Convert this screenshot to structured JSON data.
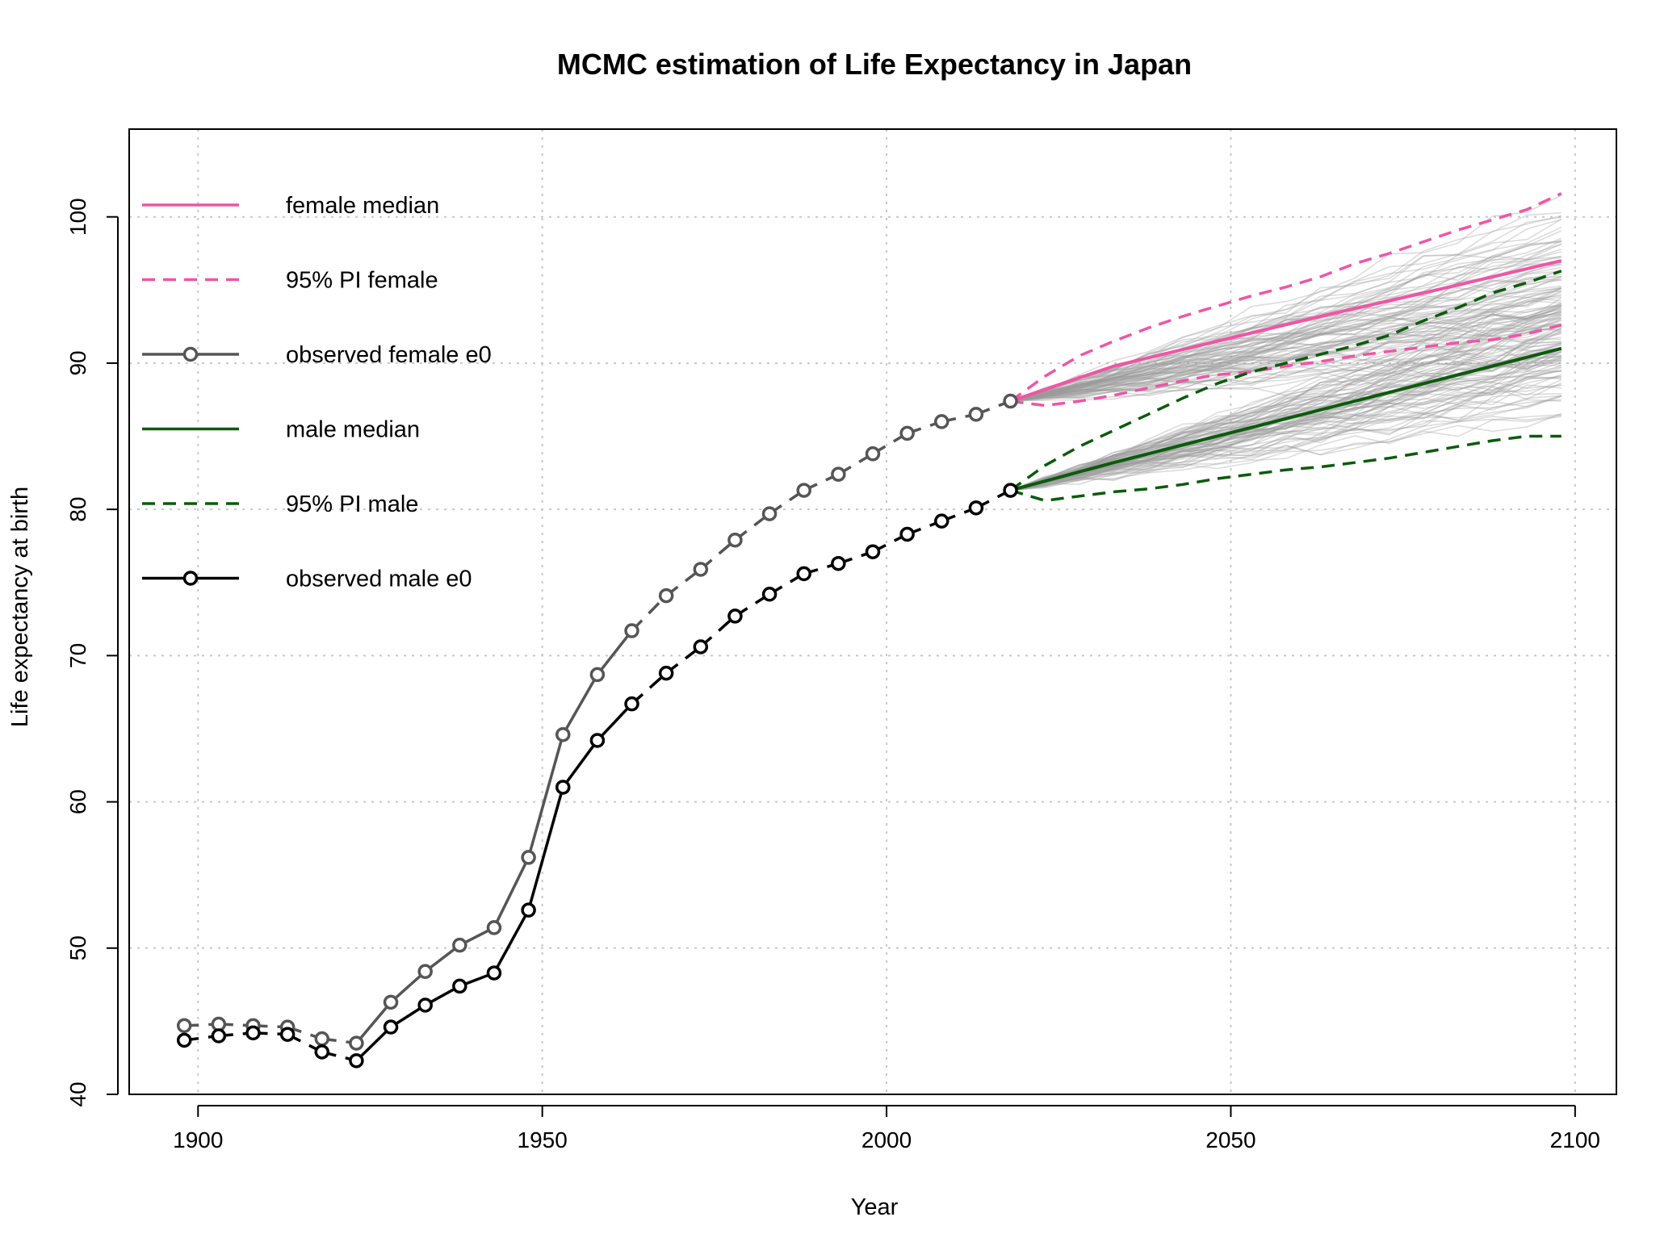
{
  "chart_data": {
    "type": "line",
    "title": "MCMC estimation of Life Expectancy in Japan",
    "xlabel": "Year",
    "ylabel": "Life expectancy at birth",
    "xlim": [
      1890,
      2106
    ],
    "ylim": [
      40,
      106
    ],
    "xticks": [
      1900,
      1950,
      2000,
      2050,
      2100
    ],
    "yticks": [
      40,
      50,
      60,
      70,
      80,
      90,
      100
    ],
    "grid": true,
    "legend_position": "top-left",
    "legend": [
      {
        "label": "female median",
        "color": "#f055a4",
        "style": "solid",
        "marker": false
      },
      {
        "label": "95% PI female",
        "color": "#f055a4",
        "style": "dashed",
        "marker": false
      },
      {
        "label": "observed female e0",
        "color": "#555555",
        "style": "solid",
        "marker": true
      },
      {
        "label": "male median",
        "color": "#0b5b0b",
        "style": "solid",
        "marker": false
      },
      {
        "label": "95% PI male",
        "color": "#0b5b0b",
        "style": "dashed",
        "marker": false
      },
      {
        "label": "observed male e0",
        "color": "#000000",
        "style": "solid",
        "marker": true
      }
    ],
    "series": [
      {
        "name": "observed female e0",
        "color": "#555555",
        "x": [
          1898,
          1903,
          1908,
          1913,
          1918,
          1923,
          1928,
          1933,
          1938,
          1943,
          1948,
          1953,
          1958,
          1963,
          1968,
          1973,
          1978,
          1983,
          1988,
          1993,
          1998,
          2003,
          2008,
          2013,
          2018
        ],
        "y": [
          44.7,
          44.8,
          44.7,
          44.6,
          43.8,
          43.5,
          46.3,
          48.4,
          50.2,
          51.4,
          56.2,
          64.6,
          68.7,
          71.7,
          74.1,
          75.9,
          77.9,
          79.7,
          81.3,
          82.4,
          83.8,
          85.2,
          86.0,
          86.5,
          87.4
        ]
      },
      {
        "name": "observed male e0",
        "color": "#000000",
        "x": [
          1898,
          1903,
          1908,
          1913,
          1918,
          1923,
          1928,
          1933,
          1938,
          1943,
          1948,
          1953,
          1958,
          1963,
          1968,
          1973,
          1978,
          1983,
          1988,
          1993,
          1998,
          2003,
          2008,
          2013,
          2018
        ],
        "y": [
          43.7,
          44.0,
          44.2,
          44.1,
          42.9,
          42.3,
          44.6,
          46.1,
          47.4,
          48.3,
          52.6,
          61.0,
          64.2,
          66.7,
          68.8,
          70.6,
          72.7,
          74.2,
          75.6,
          76.3,
          77.1,
          78.3,
          79.2,
          80.1,
          81.3
        ]
      },
      {
        "name": "female median",
        "color": "#f055a4",
        "x": [
          2018,
          2033,
          2048,
          2063,
          2078,
          2098
        ],
        "y": [
          87.4,
          89.8,
          91.5,
          93.2,
          94.8,
          97.0
        ]
      },
      {
        "name": "95% PI female upper",
        "color": "#f055a4",
        "x": [
          2018,
          2023,
          2028,
          2033,
          2038,
          2043,
          2048,
          2053,
          2058,
          2063,
          2068,
          2073,
          2078,
          2083,
          2088,
          2093,
          2098
        ],
        "y": [
          87.4,
          89.1,
          90.5,
          91.5,
          92.4,
          93.2,
          93.9,
          94.6,
          95.2,
          95.9,
          96.8,
          97.5,
          98.3,
          99.1,
          99.8,
          100.5,
          101.6
        ]
      },
      {
        "name": "95% PI female lower",
        "color": "#f055a4",
        "x": [
          2018,
          2023,
          2028,
          2033,
          2038,
          2043,
          2048,
          2053,
          2058,
          2063,
          2068,
          2073,
          2078,
          2083,
          2088,
          2093,
          2098
        ],
        "y": [
          87.4,
          87.1,
          87.4,
          87.8,
          88.3,
          88.8,
          89.2,
          89.4,
          89.8,
          90.1,
          90.5,
          90.8,
          91.1,
          91.4,
          91.6,
          92.0,
          92.6
        ]
      },
      {
        "name": "male median",
        "color": "#0b5b0b",
        "x": [
          2018,
          2033,
          2048,
          2063,
          2078,
          2098
        ],
        "y": [
          81.3,
          83.2,
          85.0,
          86.8,
          88.6,
          91.0
        ]
      },
      {
        "name": "95% PI male upper",
        "color": "#0b5b0b",
        "x": [
          2018,
          2023,
          2028,
          2033,
          2038,
          2043,
          2048,
          2053,
          2058,
          2063,
          2068,
          2073,
          2078,
          2083,
          2088,
          2093,
          2098
        ],
        "y": [
          81.3,
          83.0,
          84.3,
          85.4,
          86.5,
          87.6,
          88.6,
          89.4,
          90.0,
          90.6,
          91.2,
          91.9,
          92.9,
          93.8,
          94.8,
          95.5,
          96.3
        ]
      },
      {
        "name": "95% PI male lower",
        "color": "#0b5b0b",
        "x": [
          2018,
          2023,
          2028,
          2033,
          2038,
          2043,
          2048,
          2053,
          2058,
          2063,
          2068,
          2073,
          2078,
          2083,
          2088,
          2093,
          2098
        ],
        "y": [
          81.3,
          80.6,
          80.9,
          81.2,
          81.4,
          81.7,
          82.1,
          82.4,
          82.7,
          82.9,
          83.2,
          83.5,
          83.9,
          84.3,
          84.7,
          85.0,
          85.0
        ]
      }
    ],
    "trajectories": {
      "count": 80,
      "color": "#9a9a9a",
      "x_start": 2018,
      "x_end": 2098,
      "female_range_2098": [
        86.5,
        103.5
      ],
      "male_range_2098": [
        84.0,
        97.5
      ]
    }
  }
}
